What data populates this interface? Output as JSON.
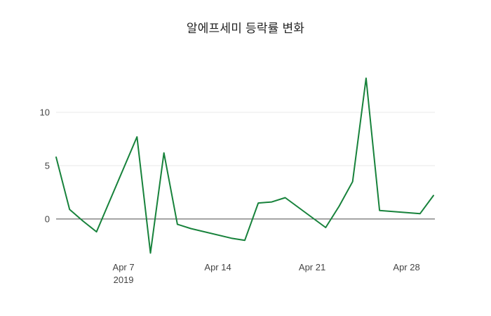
{
  "page": {
    "background": "#ffffff"
  },
  "chart_data": {
    "type": "line",
    "title": "알에프세미 등락률 변화",
    "series_name": "등락률",
    "x": [
      "2019-04-02",
      "2019-04-03",
      "2019-04-04",
      "2019-04-05",
      "2019-04-08",
      "2019-04-09",
      "2019-04-10",
      "2019-04-11",
      "2019-04-12",
      "2019-04-15",
      "2019-04-16",
      "2019-04-17",
      "2019-04-18",
      "2019-04-19",
      "2019-04-22",
      "2019-04-23",
      "2019-04-24",
      "2019-04-25",
      "2019-04-26",
      "2019-04-29",
      "2019-04-30"
    ],
    "values": [
      5.8,
      0.9,
      -0.2,
      -1.2,
      7.7,
      -3.2,
      6.2,
      -0.5,
      -0.9,
      -1.8,
      -2.0,
      1.5,
      1.6,
      2.0,
      -0.8,
      1.2,
      3.5,
      13.2,
      0.8,
      0.5,
      2.2
    ],
    "x_ticks": [
      {
        "date": "2019-04-07",
        "label": "Apr 7",
        "sublabel": "2019"
      },
      {
        "date": "2019-04-14",
        "label": "Apr 14",
        "sublabel": ""
      },
      {
        "date": "2019-04-21",
        "label": "Apr 21",
        "sublabel": ""
      },
      {
        "date": "2019-04-28",
        "label": "Apr 28",
        "sublabel": ""
      }
    ],
    "y_ticks": [
      0,
      5,
      10
    ],
    "ylim": [
      -3.5,
      13.95
    ],
    "xlim_days": [
      2,
      30
    ],
    "xlabel": "",
    "ylabel": "",
    "grid": true,
    "legend": "none",
    "colors": {
      "line": "#17823b",
      "grid": "#e9e9e9",
      "zeroline": "#4a4a4a",
      "tick_text": "#444444",
      "title_text": "#222222"
    }
  }
}
